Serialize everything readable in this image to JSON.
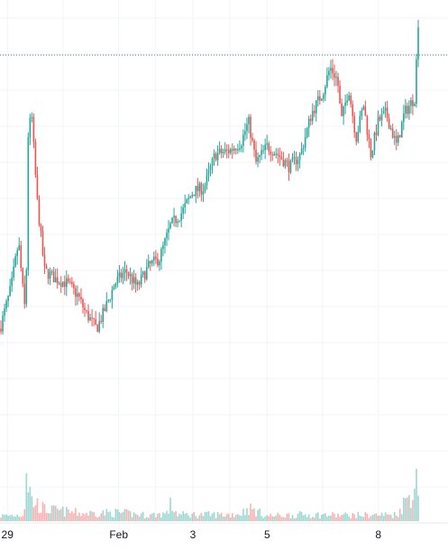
{
  "chart_data": {
    "type": "candlestick",
    "title": "",
    "xlabel": "",
    "ylabel": "",
    "grid": true,
    "legend": "none",
    "x_ticks": [
      {
        "label": "29",
        "day": 29.0
      },
      {
        "label": "Feb",
        "day": 32.0
      },
      {
        "label": "3",
        "day": 34.0
      },
      {
        "label": "5",
        "day": 36.0
      },
      {
        "label": "8",
        "day": 39.0
      }
    ],
    "x_range": [
      28.8,
      40.1
    ],
    "price_range": [
      0,
      100
    ],
    "volume_range": [
      0,
      100
    ],
    "last_price": 90,
    "price_path": [
      [
        28.8,
        24
      ],
      [
        29.1,
        34
      ],
      [
        29.3,
        45
      ],
      [
        29.45,
        30
      ],
      [
        29.5,
        28
      ],
      [
        29.55,
        70
      ],
      [
        29.65,
        76
      ],
      [
        29.8,
        55
      ],
      [
        30.0,
        38
      ],
      [
        30.3,
        36
      ],
      [
        30.6,
        35
      ],
      [
        30.9,
        32
      ],
      [
        31.1,
        28
      ],
      [
        31.4,
        24
      ],
      [
        31.6,
        28
      ],
      [
        31.9,
        35
      ],
      [
        32.2,
        38
      ],
      [
        32.5,
        34
      ],
      [
        32.8,
        39
      ],
      [
        33.1,
        41
      ],
      [
        33.4,
        49
      ],
      [
        33.7,
        52
      ],
      [
        34.0,
        57
      ],
      [
        34.3,
        58
      ],
      [
        34.6,
        66
      ],
      [
        35.0,
        67
      ],
      [
        35.3,
        69
      ],
      [
        35.5,
        74
      ],
      [
        35.7,
        64
      ],
      [
        36.0,
        68
      ],
      [
        36.3,
        66
      ],
      [
        36.6,
        63
      ],
      [
        36.9,
        66
      ],
      [
        37.2,
        76
      ],
      [
        37.5,
        81
      ],
      [
        37.7,
        87
      ],
      [
        37.9,
        84
      ],
      [
        38.0,
        74
      ],
      [
        38.2,
        82
      ],
      [
        38.4,
        70
      ],
      [
        38.6,
        78
      ],
      [
        38.8,
        66
      ],
      [
        39.0,
        74
      ],
      [
        39.2,
        76
      ],
      [
        39.5,
        68
      ],
      [
        39.7,
        76
      ],
      [
        40.0,
        80
      ],
      [
        40.05,
        96
      ],
      [
        40.1,
        100
      ]
    ],
    "volume_profile": [
      [
        28.8,
        8
      ],
      [
        29.45,
        10
      ],
      [
        29.5,
        85
      ],
      [
        29.65,
        32
      ],
      [
        30.0,
        18
      ],
      [
        31.0,
        12
      ],
      [
        32.0,
        13
      ],
      [
        32.8,
        9
      ],
      [
        33.3,
        12
      ],
      [
        33.4,
        25
      ],
      [
        33.6,
        10
      ],
      [
        35.0,
        10
      ],
      [
        35.3,
        12
      ],
      [
        35.5,
        20
      ],
      [
        36.0,
        8
      ],
      [
        37.0,
        10
      ],
      [
        38.0,
        9
      ],
      [
        39.5,
        10
      ],
      [
        40.05,
        60
      ],
      [
        40.1,
        25
      ]
    ]
  }
}
